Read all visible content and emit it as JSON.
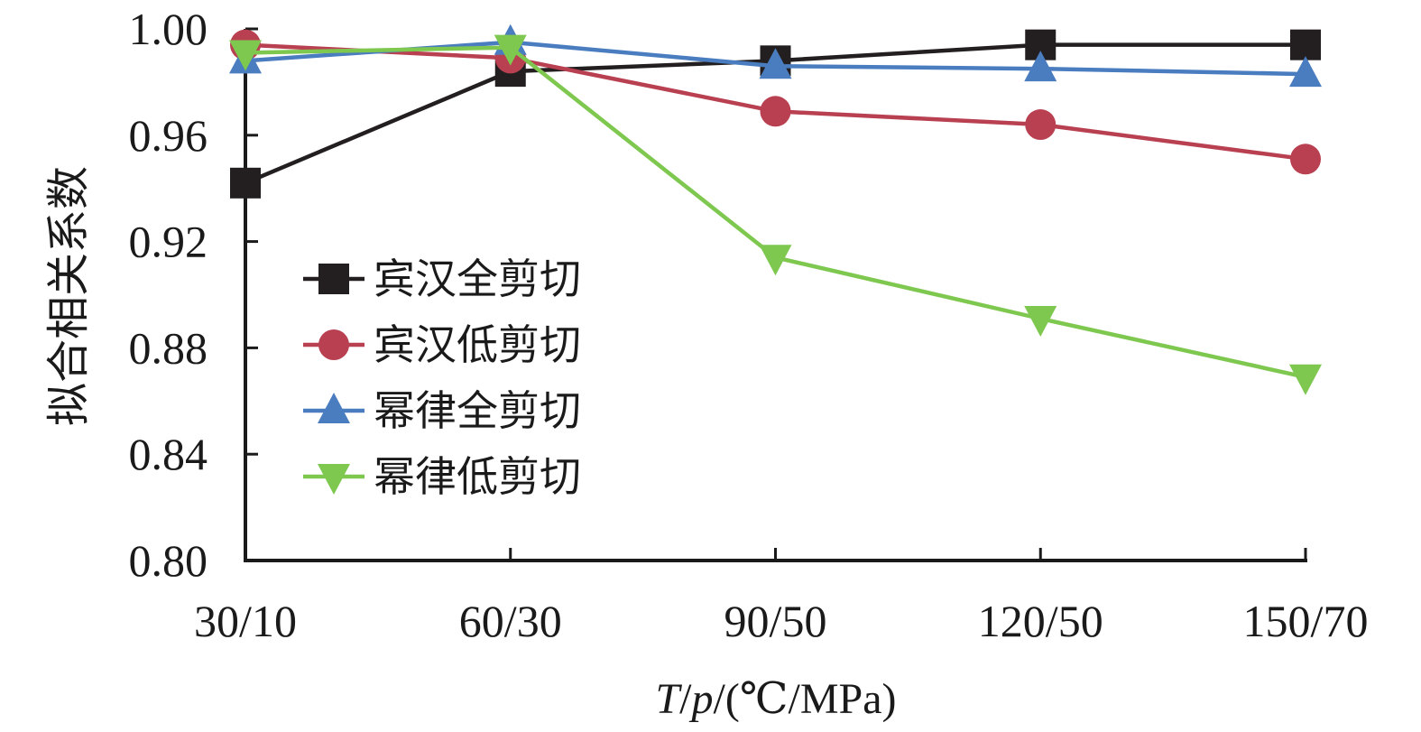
{
  "chart_data": {
    "type": "line",
    "categories": [
      "30/10",
      "60/30",
      "90/50",
      "120/50",
      "150/70"
    ],
    "ylim": [
      0.8,
      1.0
    ],
    "y_ticks": [
      "0.80",
      "0.84",
      "0.88",
      "0.92",
      "0.96",
      "1.00"
    ],
    "y_tick_values": [
      0.8,
      0.84,
      0.88,
      0.92,
      0.96,
      1.0
    ],
    "xlabel": {
      "T": "T",
      "slash1": "/",
      "p": "p",
      "unit": "/(℃/MPa)"
    },
    "ylabel": "拟合相关系数",
    "grid": false,
    "legend_position": "center-left",
    "series": [
      {
        "name": "宾汉全剪切",
        "color": "#231f20",
        "marker": "square",
        "values": [
          0.942,
          0.984,
          0.988,
          0.994,
          0.994
        ]
      },
      {
        "name": "宾汉低剪切",
        "color": "#b84050",
        "marker": "circle",
        "values": [
          0.994,
          0.989,
          0.969,
          0.964,
          0.951
        ]
      },
      {
        "name": "幂律全剪切",
        "color": "#4a7cc0",
        "marker": "triangle-up",
        "values": [
          0.988,
          0.995,
          0.986,
          0.985,
          0.983
        ]
      },
      {
        "name": "幂律低剪切",
        "color": "#7ec850",
        "marker": "triangle-down",
        "values": [
          0.991,
          0.993,
          0.914,
          0.891,
          0.869
        ]
      }
    ]
  }
}
